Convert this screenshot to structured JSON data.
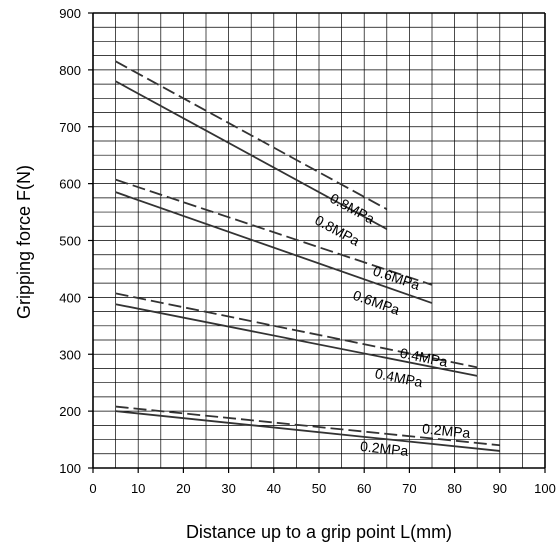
{
  "chart_data": {
    "type": "line",
    "xlabel": "Distance up to a grip point L(mm)",
    "ylabel": "Gripping force F(N)",
    "xlim": [
      0,
      100
    ],
    "ylim": [
      100,
      900
    ],
    "x_ticks": [
      "0",
      "10",
      "20",
      "30",
      "40",
      "50",
      "60",
      "70",
      "80",
      "90",
      "100"
    ],
    "y_ticks": [
      "100",
      "200",
      "300",
      "400",
      "500",
      "600",
      "700",
      "800",
      "900"
    ],
    "grid": true,
    "series": [
      {
        "name": "0.8MPa",
        "style": "dashed",
        "x": [
          5,
          65
        ],
        "y": [
          815,
          555
        ]
      },
      {
        "name": "0.8MPa",
        "style": "solid",
        "x": [
          5,
          65
        ],
        "y": [
          780,
          520
        ]
      },
      {
        "name": "0.6MPa",
        "style": "dashed",
        "x": [
          5,
          75
        ],
        "y": [
          607,
          422
        ]
      },
      {
        "name": "0.6MPa",
        "style": "solid",
        "x": [
          5,
          75
        ],
        "y": [
          585,
          390
        ]
      },
      {
        "name": "0.4MPa",
        "style": "dashed",
        "x": [
          5,
          85
        ],
        "y": [
          407,
          277
        ]
      },
      {
        "name": "0.4MPa",
        "style": "solid",
        "x": [
          5,
          85
        ],
        "y": [
          388,
          262
        ]
      },
      {
        "name": "0.2MPa",
        "style": "dashed",
        "x": [
          5,
          90
        ],
        "y": [
          208,
          140
        ]
      },
      {
        "name": "0.2MPa",
        "style": "solid",
        "x": [
          5,
          90
        ],
        "y": [
          200,
          130
        ]
      }
    ]
  }
}
